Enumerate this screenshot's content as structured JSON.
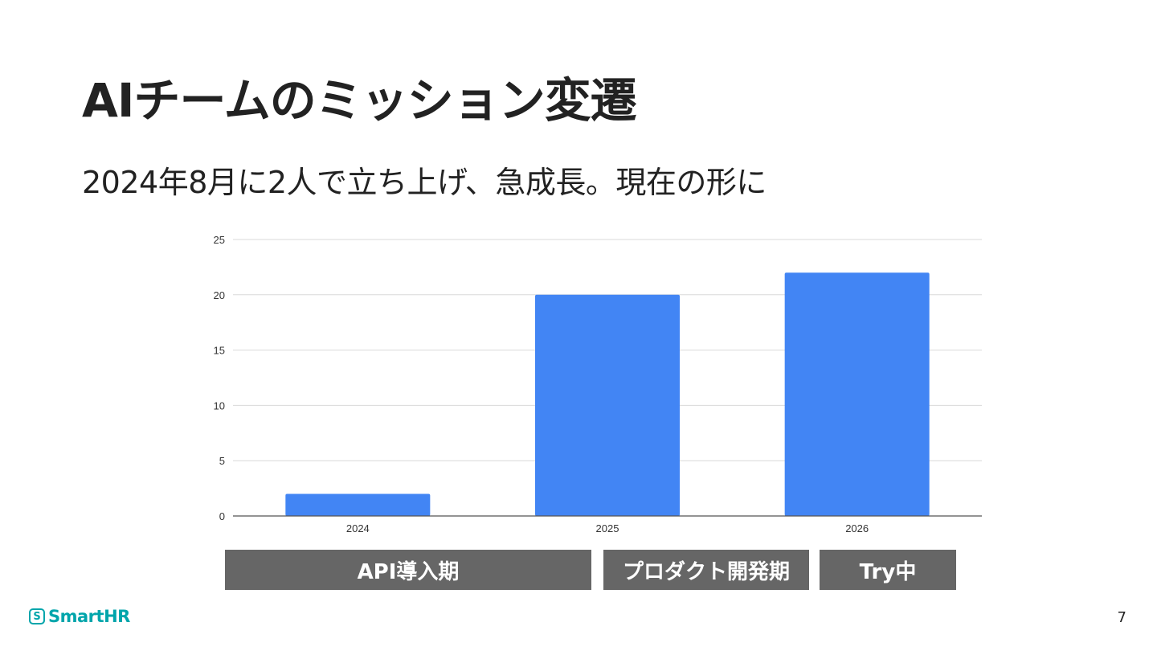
{
  "slide": {
    "title": "AIチームのミッション変遷",
    "subtitle": "2024年8月に2人で立ち上げ、急成長。現在の形に",
    "page_number": "7",
    "logo_text": "SmartHR",
    "logo_mark": "S"
  },
  "phases": [
    {
      "label": "API導入期"
    },
    {
      "label": "プロダクト開発期"
    },
    {
      "label": "Try中"
    }
  ],
  "chart_data": {
    "type": "bar",
    "categories": [
      "2024",
      "2025",
      "2026"
    ],
    "values": [
      2,
      20,
      22
    ],
    "ylim": [
      0,
      25
    ],
    "yticks": [
      0,
      5,
      10,
      15,
      20,
      25
    ],
    "title": "",
    "xlabel": "",
    "ylabel": "",
    "grid": true,
    "bar_color": "#4285f4",
    "grid_color": "#d9d9d9",
    "axis_color": "#555555"
  },
  "colors": {
    "phase_bg": "#666666",
    "brand": "#00a5ab"
  }
}
